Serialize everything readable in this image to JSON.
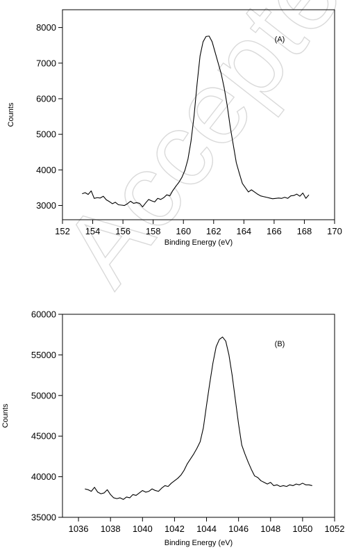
{
  "watermark": {
    "text": "Accepted"
  },
  "chart_data": [
    {
      "type": "line",
      "title": "",
      "annotation": "(A)",
      "xlabel": "Binding Energy (eV)",
      "ylabel": "Counts",
      "xlim": [
        152,
        170
      ],
      "ylim": [
        2600,
        8500
      ],
      "xticks": [
        152,
        154,
        156,
        158,
        160,
        162,
        164,
        166,
        168,
        170
      ],
      "yticks": [
        3000,
        4000,
        5000,
        6000,
        7000,
        8000
      ],
      "grid": false,
      "line_color": "#000000",
      "series": [
        {
          "x": [
            153.3,
            153.5,
            153.7,
            153.9,
            154.1,
            154.3,
            154.5,
            154.7,
            154.9,
            155.1,
            155.3,
            155.5,
            155.7,
            155.9,
            156.1,
            156.3,
            156.5,
            156.7,
            156.9,
            157.1,
            157.3,
            157.5,
            157.7,
            157.9,
            158.1,
            158.3,
            158.5,
            158.7,
            158.9,
            159.1,
            159.3,
            159.5,
            159.7,
            159.9,
            160.1,
            160.3,
            160.5,
            160.7,
            160.9,
            161.1,
            161.3,
            161.5,
            161.7,
            161.9,
            162.1,
            162.3,
            162.5,
            162.7,
            162.9,
            163.1,
            163.3,
            163.5,
            163.7,
            163.9,
            164.1,
            164.3,
            164.5,
            164.7,
            164.9,
            165.1,
            165.3,
            165.5,
            165.7,
            165.9,
            166.1,
            166.3,
            166.5,
            166.7,
            166.9,
            167.1,
            167.3,
            167.5,
            167.7,
            167.9,
            168.1,
            168.3
          ],
          "y": [
            3330,
            3360,
            3310,
            3410,
            3200,
            3220,
            3210,
            3260,
            3160,
            3110,
            3050,
            3090,
            3020,
            3010,
            3000,
            3050,
            3120,
            3060,
            3080,
            3060,
            2960,
            3070,
            3170,
            3130,
            3100,
            3200,
            3170,
            3220,
            3300,
            3270,
            3420,
            3540,
            3650,
            3790,
            3990,
            4300,
            4800,
            5500,
            6400,
            7200,
            7600,
            7750,
            7760,
            7600,
            7300,
            7000,
            6700,
            6300,
            5800,
            5200,
            4700,
            4200,
            3900,
            3620,
            3500,
            3380,
            3440,
            3380,
            3320,
            3270,
            3250,
            3230,
            3210,
            3190,
            3200,
            3210,
            3200,
            3230,
            3200,
            3270,
            3280,
            3320,
            3260,
            3350,
            3200,
            3300
          ]
        }
      ]
    },
    {
      "type": "line",
      "title": "",
      "annotation": "(B)",
      "xlabel": "Binding Energy (eV)",
      "ylabel": "Counts",
      "xlim": [
        1035,
        1052
      ],
      "ylim": [
        35000,
        60000
      ],
      "xticks": [
        1036,
        1038,
        1040,
        1042,
        1044,
        1046,
        1048,
        1050,
        1052
      ],
      "yticks": [
        35000,
        40000,
        45000,
        50000,
        55000,
        60000
      ],
      "grid": false,
      "line_color": "#000000",
      "series": [
        {
          "x": [
            1036.4,
            1036.6,
            1036.8,
            1037.0,
            1037.2,
            1037.4,
            1037.6,
            1037.8,
            1038.0,
            1038.2,
            1038.4,
            1038.6,
            1038.8,
            1039.0,
            1039.2,
            1039.4,
            1039.6,
            1039.8,
            1040.0,
            1040.2,
            1040.4,
            1040.6,
            1040.8,
            1041.0,
            1041.2,
            1041.4,
            1041.6,
            1041.8,
            1042.0,
            1042.2,
            1042.4,
            1042.6,
            1042.8,
            1043.0,
            1043.2,
            1043.4,
            1043.6,
            1043.8,
            1044.0,
            1044.2,
            1044.4,
            1044.6,
            1044.8,
            1045.0,
            1045.2,
            1045.4,
            1045.6,
            1045.8,
            1046.0,
            1046.2,
            1046.4,
            1046.6,
            1046.8,
            1047.0,
            1047.2,
            1047.4,
            1047.6,
            1047.8,
            1048.0,
            1048.2,
            1048.4,
            1048.6,
            1048.8,
            1049.0,
            1049.2,
            1049.4,
            1049.6,
            1049.8,
            1050.0,
            1050.2,
            1050.4,
            1050.6
          ],
          "y": [
            38500,
            38400,
            38200,
            38700,
            38100,
            37900,
            38000,
            38400,
            37800,
            37400,
            37300,
            37400,
            37200,
            37500,
            37400,
            37800,
            37700,
            38000,
            38300,
            38100,
            38200,
            38500,
            38300,
            38200,
            38600,
            38900,
            38800,
            39200,
            39500,
            39800,
            40200,
            40800,
            41600,
            42200,
            42800,
            43500,
            44300,
            46000,
            48800,
            51500,
            54000,
            56000,
            56900,
            57200,
            56700,
            55000,
            52500,
            49500,
            46500,
            43900,
            42800,
            41800,
            40900,
            40100,
            39900,
            39500,
            39300,
            39100,
            39300,
            38900,
            39000,
            38800,
            38900,
            38800,
            39000,
            38900,
            39100,
            39000,
            39200,
            39000,
            39000,
            38900
          ]
        }
      ]
    }
  ]
}
